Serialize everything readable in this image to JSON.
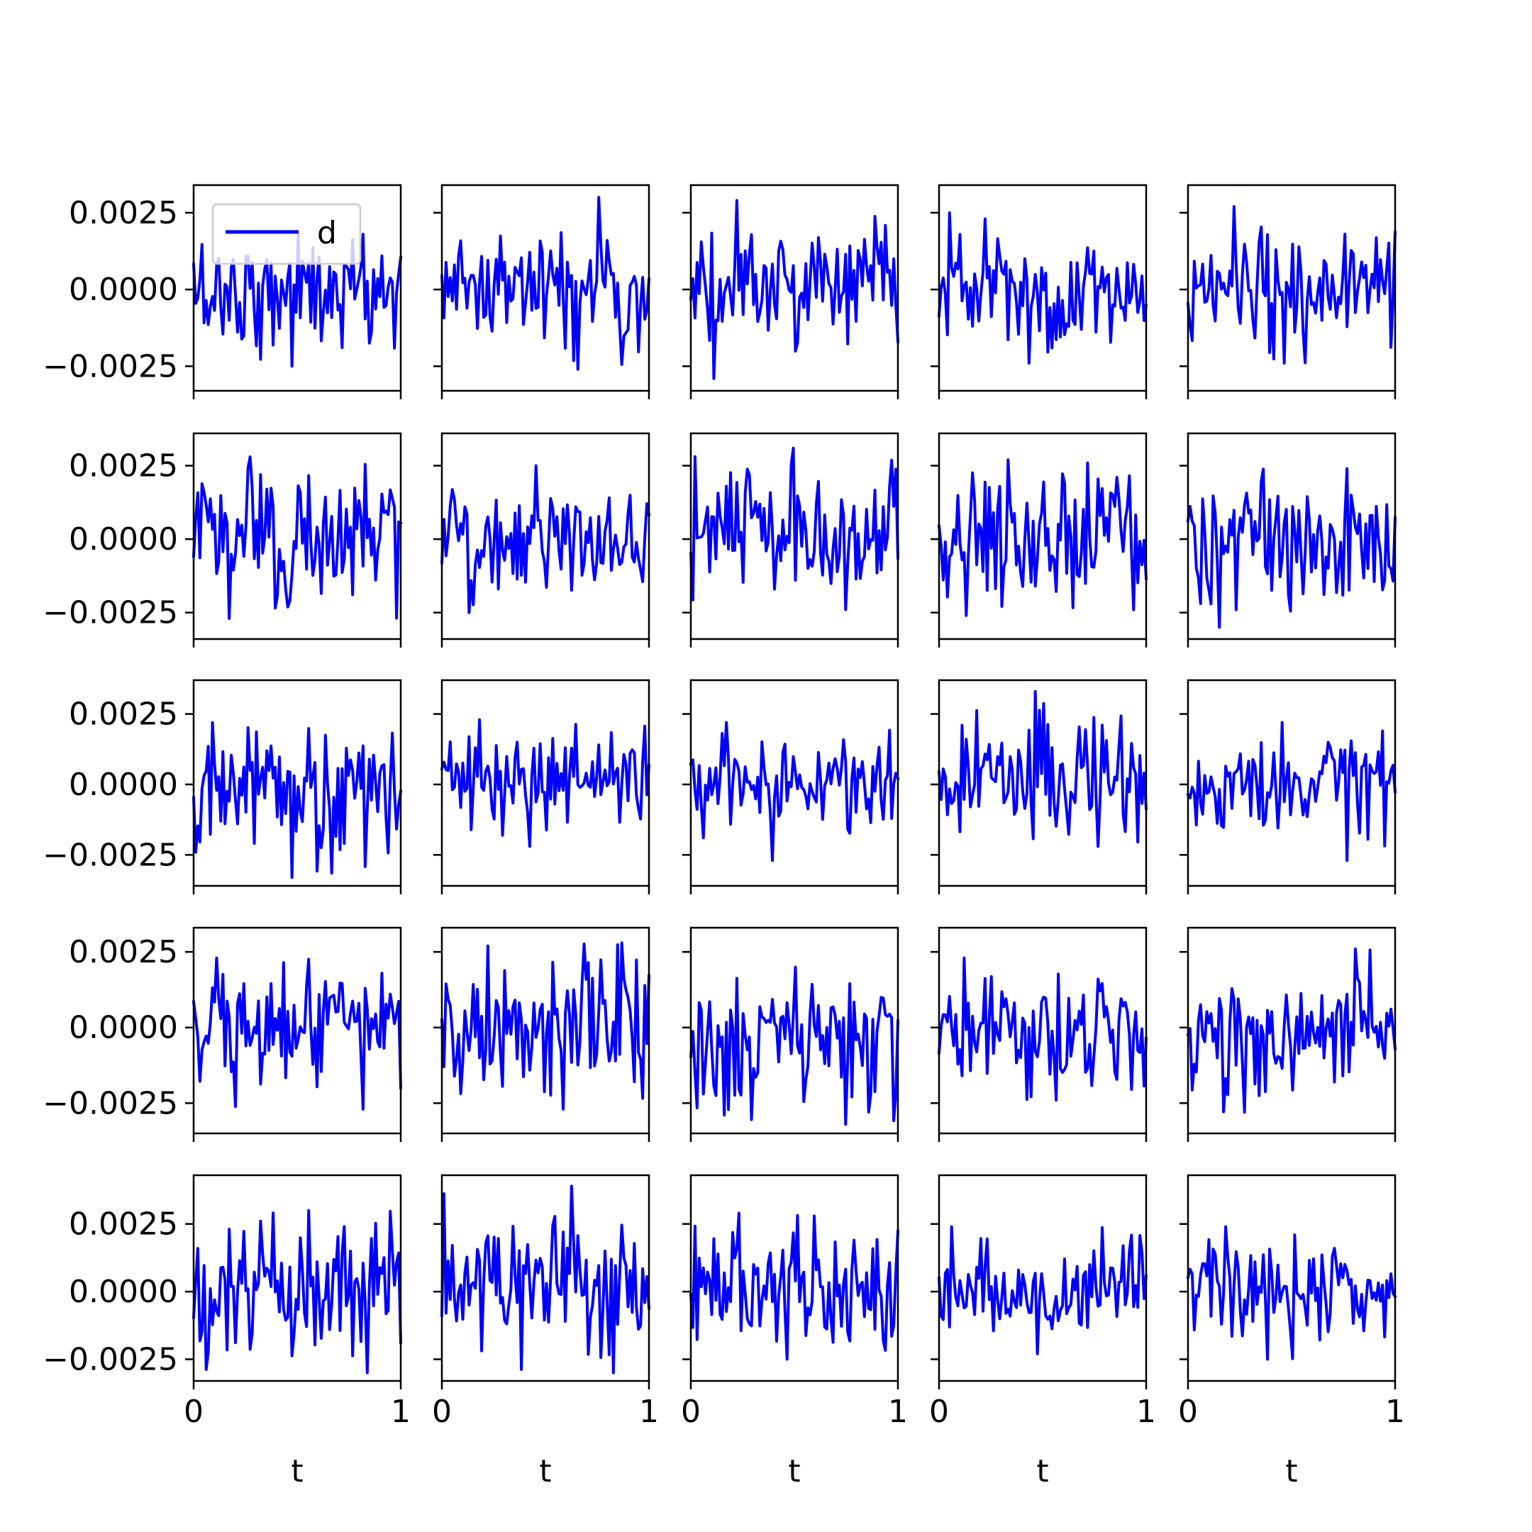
{
  "chart_data": {
    "type": "line",
    "layout": "5x5 grid of line subplots sharing axes",
    "line_color": "#0000ff",
    "legend": {
      "label": "d",
      "placement": "upper-left of first subplot"
    },
    "xlabel": "t",
    "x_range": [
      0,
      1
    ],
    "x_tick_labels": [
      "0",
      "1"
    ],
    "y_tick_labels": [
      "0.0025",
      "0.0000",
      "−0.0025"
    ],
    "row_ylims": [
      [
        -0.0033,
        0.0034
      ],
      [
        -0.0034,
        0.0036
      ],
      [
        -0.0036,
        0.0037
      ],
      [
        -0.0035,
        0.0033
      ],
      [
        -0.0033,
        0.0043
      ]
    ],
    "points_per_series": 100,
    "noise_std": 0.001,
    "approx_extremes": [
      [
        [
          -0.0025,
          0.0018
        ],
        [
          -0.0026,
          0.003
        ],
        [
          -0.0029,
          0.0029
        ],
        [
          -0.0024,
          0.0025
        ],
        [
          -0.0024,
          0.0027
        ]
      ],
      [
        [
          -0.0027,
          0.0028
        ],
        [
          -0.0025,
          0.0025
        ],
        [
          -0.0024,
          0.0031
        ],
        [
          -0.0026,
          0.0027
        ],
        [
          -0.003,
          0.0024
        ]
      ],
      [
        [
          -0.0033,
          0.0022
        ],
        [
          -0.0022,
          0.0023
        ],
        [
          -0.0027,
          0.0022
        ],
        [
          -0.0022,
          0.0033
        ],
        [
          -0.0027,
          0.0022
        ]
      ],
      [
        [
          -0.0027,
          0.0023
        ],
        [
          -0.0027,
          0.0028
        ],
        [
          -0.0032,
          0.002
        ],
        [
          -0.0024,
          0.0023
        ],
        [
          -0.0028,
          0.0026
        ]
      ],
      [
        [
          -0.003,
          0.003
        ],
        [
          -0.003,
          0.0039
        ],
        [
          -0.0025,
          0.0029
        ],
        [
          -0.0023,
          0.0024
        ],
        [
          -0.0025,
          0.0024
        ]
      ]
    ]
  }
}
